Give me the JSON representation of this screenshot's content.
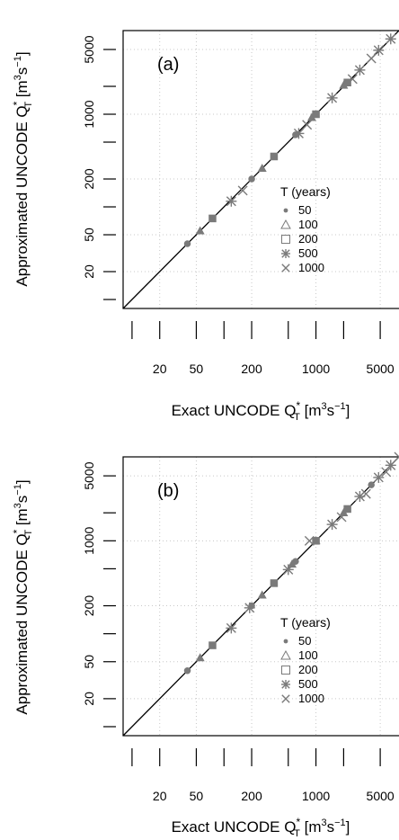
{
  "colors": {
    "marker": "#7a7a7a",
    "axis": "#000000",
    "grid": "#c8c8c8"
  },
  "chart_data": [
    {
      "type": "scatter",
      "panel_label": "(a)",
      "xlabel": "Exact UNCODE",
      "ylabel": "Approximated UNCODE",
      "quantity": "Q",
      "quantity_sub": "T",
      "quantity_sup": "*",
      "unit_open": "[m",
      "unit_exp1": "3",
      "unit_mid": "s",
      "unit_exp2": "−1",
      "unit_close": "]",
      "log_scale": true,
      "xlim": [
        8,
        8000
      ],
      "ylim": [
        8,
        8000
      ],
      "x_ticklabels": [
        "20",
        "50",
        "200",
        "1000",
        "5000"
      ],
      "y_ticklabels": [
        "20",
        "50",
        "200",
        "1000",
        "5000"
      ],
      "grid": true,
      "identity_line": true,
      "legend": {
        "title": "T (years)",
        "position": "right",
        "entries": [
          {
            "label": "50",
            "marker": "dot"
          },
          {
            "label": "100",
            "marker": "triangle"
          },
          {
            "label": "200",
            "marker": "square"
          },
          {
            "label": "500",
            "marker": "asterisk"
          },
          {
            "label": "1000",
            "marker": "cross"
          }
        ]
      },
      "series": [
        {
          "T": "50",
          "marker": "dot",
          "points": [
            [
              40,
              40
            ],
            [
              200,
              200
            ],
            [
              600,
              600
            ]
          ]
        },
        {
          "T": "100",
          "marker": "triangle",
          "points": [
            [
              55,
              55
            ],
            [
              260,
              260
            ],
            [
              900,
              920
            ],
            [
              2000,
              2050
            ]
          ]
        },
        {
          "T": "200",
          "marker": "square",
          "points": [
            [
              75,
              75
            ],
            [
              350,
              350
            ],
            [
              1000,
              1000
            ],
            [
              2200,
              2200
            ]
          ]
        },
        {
          "T": "500",
          "marker": "asterisk",
          "points": [
            [
              120,
              115
            ],
            [
              650,
              620
            ],
            [
              1500,
              1500
            ],
            [
              3000,
              3000
            ],
            [
              4800,
              4900
            ],
            [
              6500,
              6500
            ]
          ]
        },
        {
          "T": "1000",
          "marker": "cross",
          "points": [
            [
              160,
              150
            ],
            [
              800,
              770
            ],
            [
              2500,
              2400
            ],
            [
              4000,
              4000
            ]
          ]
        }
      ]
    },
    {
      "type": "scatter",
      "panel_label": "(b)",
      "xlabel": "Exact UNCODE",
      "ylabel": "Approximated UNCODE",
      "quantity": "Q",
      "quantity_sub": "T",
      "quantity_sup": "*",
      "unit_open": "[m",
      "unit_exp1": "3",
      "unit_mid": "s",
      "unit_exp2": "−1",
      "unit_close": "]",
      "log_scale": true,
      "xlim": [
        8,
        8000
      ],
      "ylim": [
        8,
        8000
      ],
      "x_ticklabels": [
        "20",
        "50",
        "200",
        "1000",
        "5000"
      ],
      "y_ticklabels": [
        "20",
        "50",
        "200",
        "1000",
        "5000"
      ],
      "grid": true,
      "identity_line": true,
      "legend": {
        "title": "T (years)",
        "position": "right",
        "entries": [
          {
            "label": "50",
            "marker": "dot"
          },
          {
            "label": "100",
            "marker": "triangle"
          },
          {
            "label": "200",
            "marker": "square"
          },
          {
            "label": "500",
            "marker": "asterisk"
          },
          {
            "label": "1000",
            "marker": "cross"
          }
        ]
      },
      "series": [
        {
          "T": "50",
          "marker": "dot",
          "points": [
            [
              40,
              40
            ],
            [
              200,
              200
            ],
            [
              600,
              600
            ],
            [
              4000,
              4000
            ]
          ]
        },
        {
          "T": "100",
          "marker": "triangle",
          "points": [
            [
              55,
              55
            ],
            [
              260,
              260
            ],
            [
              550,
              560
            ],
            [
              1000,
              1000
            ],
            [
              2000,
              2000
            ]
          ]
        },
        {
          "T": "200",
          "marker": "square",
          "points": [
            [
              75,
              75
            ],
            [
              350,
              350
            ],
            [
              1000,
              1000
            ],
            [
              2200,
              2200
            ]
          ]
        },
        {
          "T": "500",
          "marker": "asterisk",
          "points": [
            [
              120,
              115
            ],
            [
              190,
              190
            ],
            [
              500,
              490
            ],
            [
              1500,
              1500
            ],
            [
              3000,
              3000
            ],
            [
              4800,
              4800
            ],
            [
              6500,
              6500
            ]
          ]
        },
        {
          "T": "1000",
          "marker": "cross",
          "points": [
            [
              850,
              1000
            ],
            [
              1900,
              1800
            ],
            [
              3500,
              3200
            ],
            [
              5800,
              5500
            ],
            [
              8000,
              8000
            ]
          ]
        }
      ]
    }
  ]
}
